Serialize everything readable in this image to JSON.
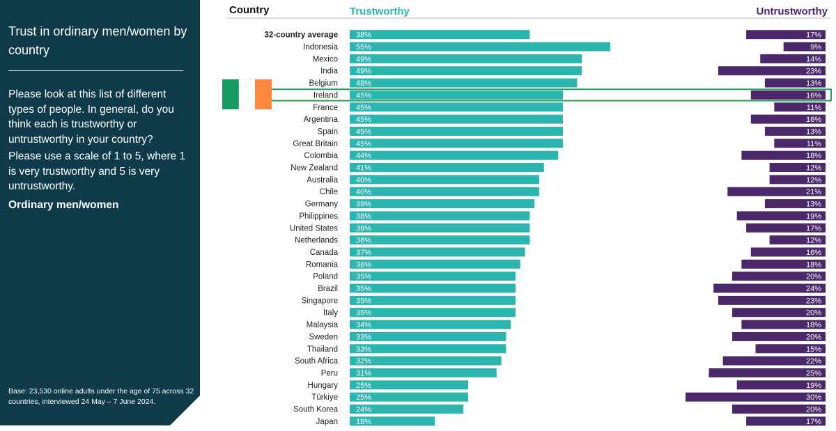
{
  "sidebar": {
    "title": "Trust in ordinary men/women by country",
    "question": "Please look at this list of different types of people. In general, do you think each is trustworthy or untrustworthy in your country?",
    "scale": "Please use a scale of 1 to 5, where 1 is very trustworthy and 5 is very untrustworthy.",
    "subject": "Ordinary men/women",
    "base_note": "Base: 23,530 online adults under the age of 75 across 32 countries, interviewed 24 May – 7 June 2024."
  },
  "colors": {
    "sidebar_bg": "#0f3a4a",
    "trustworthy": "#2cb5ae",
    "untrustworthy": "#4a2869",
    "highlight": "#1fa35a",
    "flag": [
      "#169b62",
      "#ffffff",
      "#ff883e"
    ]
  },
  "chart_data": {
    "type": "bar",
    "layout": "diverging",
    "category_header": "Country",
    "series": [
      {
        "name": "Trustworthy",
        "side": "left",
        "values": [
          38,
          55,
          49,
          49,
          48,
          45,
          45,
          45,
          45,
          45,
          44,
          41,
          40,
          40,
          39,
          38,
          38,
          38,
          37,
          36,
          35,
          35,
          35,
          35,
          34,
          33,
          33,
          32,
          31,
          25,
          25,
          24,
          18
        ]
      },
      {
        "name": "Untrustworthy",
        "side": "right",
        "values": [
          17,
          9,
          14,
          23,
          13,
          16,
          11,
          16,
          13,
          11,
          18,
          12,
          12,
          21,
          13,
          19,
          17,
          12,
          16,
          18,
          20,
          24,
          23,
          20,
          18,
          20,
          15,
          22,
          25,
          19,
          30,
          20,
          17
        ]
      }
    ],
    "categories": [
      "32-country average",
      "Indonesia",
      "Mexico",
      "India",
      "Belgium",
      "Ireland",
      "France",
      "Argentina",
      "Spain",
      "Great Britain",
      "Colombia",
      "New Zealand",
      "Australia",
      "Chile",
      "Germany",
      "Philippines",
      "United States",
      "Netherlands",
      "Canada",
      "Romania",
      "Poland",
      "Brazil",
      "Singapore",
      "Italy",
      "Malaysia",
      "Sweden",
      "Thailand",
      "South Africa",
      "Peru",
      "Hungary",
      "Türkiye",
      "South Korea",
      "Japan"
    ],
    "emphasized_category": "32-country average",
    "highlighted_category": "Ireland",
    "value_suffix": "%",
    "grid": false,
    "legend": "none"
  }
}
